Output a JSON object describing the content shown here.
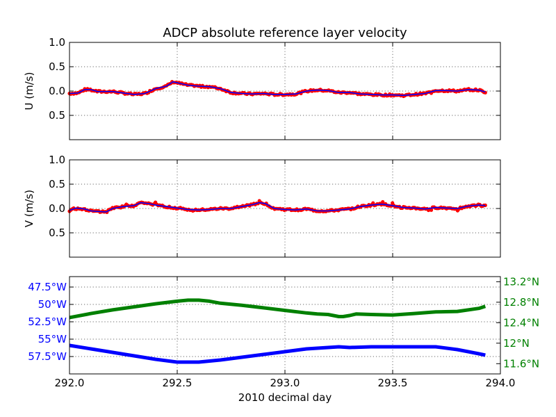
{
  "chart_data": [
    {
      "type": "line",
      "title": "ADCP absolute reference layer velocity",
      "ylabel": "U (m/s)",
      "xlim": [
        292.0,
        294.0
      ],
      "ylim": [
        -1.0,
        1.0
      ],
      "yticks": [
        "1.0",
        "0.5",
        "0.0"
      ],
      "ytick_values": [
        1.0,
        0.5,
        0.0
      ],
      "yticks_neg": [
        "0.5"
      ],
      "grid": true,
      "colors": {
        "raw": "#ff0000",
        "smoothed": "#0000ff"
      },
      "x": [
        292.0,
        292.04,
        292.07,
        292.1,
        292.13,
        292.17,
        292.2,
        292.25,
        292.3,
        292.35,
        292.4,
        292.45,
        292.48,
        292.52,
        292.55,
        292.6,
        292.65,
        292.7,
        292.75,
        292.8,
        292.85,
        292.9,
        292.95,
        293.0,
        293.05,
        293.1,
        293.15,
        293.2,
        293.25,
        293.3,
        293.35,
        293.4,
        293.45,
        293.5,
        293.55,
        293.6,
        293.65,
        293.7,
        293.75,
        293.8,
        293.85,
        293.9,
        293.93
      ],
      "y": [
        -0.05,
        -0.04,
        0.03,
        0.03,
        -0.01,
        -0.01,
        -0.01,
        -0.04,
        -0.07,
        -0.05,
        0.05,
        0.1,
        0.19,
        0.15,
        0.12,
        0.1,
        0.09,
        0.05,
        -0.03,
        -0.05,
        -0.06,
        -0.05,
        -0.07,
        -0.07,
        -0.06,
        0.0,
        0.02,
        0.01,
        -0.03,
        -0.03,
        -0.06,
        -0.07,
        -0.08,
        -0.08,
        -0.09,
        -0.07,
        -0.05,
        0.01,
        0.01,
        0.0,
        0.03,
        0.02,
        -0.02
      ]
    },
    {
      "type": "line",
      "ylabel": "V (m/s)",
      "xlim": [
        292.0,
        294.0
      ],
      "ylim": [
        -1.0,
        1.0
      ],
      "yticks": [
        "1.0",
        "0.5",
        "0.0"
      ],
      "ytick_values": [
        1.0,
        0.5,
        0.0
      ],
      "yticks_neg": [
        "0.5"
      ],
      "grid": true,
      "colors": {
        "raw": "#ff0000",
        "smoothed": "#0000ff"
      },
      "x": [
        292.0,
        292.03,
        292.07,
        292.1,
        292.13,
        292.17,
        292.2,
        292.25,
        292.3,
        292.33,
        292.37,
        292.4,
        292.45,
        292.5,
        292.55,
        292.6,
        292.65,
        292.7,
        292.75,
        292.8,
        292.85,
        292.88,
        292.91,
        292.95,
        293.0,
        293.05,
        293.1,
        293.15,
        293.2,
        293.25,
        293.3,
        293.35,
        293.4,
        293.45,
        293.5,
        293.55,
        293.6,
        293.65,
        293.7,
        293.75,
        293.8,
        293.85,
        293.9,
        293.93
      ],
      "y": [
        -0.04,
        0.01,
        -0.01,
        -0.05,
        -0.06,
        -0.07,
        0.0,
        0.04,
        0.06,
        0.12,
        0.1,
        0.07,
        0.04,
        0.01,
        -0.02,
        -0.03,
        -0.02,
        0.0,
        0.0,
        0.04,
        0.08,
        0.12,
        0.1,
        0.0,
        -0.02,
        -0.03,
        -0.01,
        -0.05,
        -0.05,
        -0.03,
        -0.01,
        0.04,
        0.07,
        0.09,
        0.06,
        0.02,
        0.01,
        -0.01,
        0.02,
        0.01,
        0.0,
        0.05,
        0.07,
        0.06
      ]
    },
    {
      "type": "line",
      "xlabel": "2010 decimal day",
      "xlim": [
        292.0,
        294.0
      ],
      "xticks": [
        "292.0",
        "292.5",
        "293.0",
        "293.5",
        "294.0"
      ],
      "xtick_values": [
        292.0,
        292.5,
        293.0,
        293.5,
        294.0
      ],
      "grid": true,
      "series": [
        {
          "axis": "left",
          "color": "#0000ff",
          "ylim": [
            -60.0,
            -46.0
          ],
          "ytick_values": [
            -47.5,
            -50.0,
            -52.5,
            -55.0,
            -57.5
          ],
          "yticks": [
            "47.5°W",
            "50°W",
            "52.5°W",
            "55°W",
            "57.5°W"
          ],
          "x": [
            292.0,
            292.1,
            292.2,
            292.3,
            292.4,
            292.5,
            292.6,
            292.7,
            292.8,
            292.9,
            293.0,
            293.1,
            293.2,
            293.25,
            293.3,
            293.4,
            293.5,
            293.6,
            293.7,
            293.8,
            293.9,
            293.93
          ],
          "y": [
            -55.9,
            -56.4,
            -56.9,
            -57.4,
            -57.9,
            -58.3,
            -58.3,
            -58.0,
            -57.6,
            -57.2,
            -56.8,
            -56.4,
            -56.2,
            -56.1,
            -56.2,
            -56.1,
            -56.1,
            -56.1,
            -56.1,
            -56.5,
            -57.1,
            -57.3
          ]
        },
        {
          "axis": "right",
          "color": "#008000",
          "ylim": [
            11.4,
            13.3
          ],
          "ytick_values": [
            13.2,
            12.8,
            12.4,
            12.0,
            11.6
          ],
          "yticks": [
            "13.2°N",
            "12.8°N",
            "12.4°N",
            "12°N",
            "11.6°N"
          ],
          "x": [
            292.0,
            292.1,
            292.2,
            292.3,
            292.4,
            292.5,
            292.55,
            292.6,
            292.65,
            292.7,
            292.8,
            292.9,
            293.0,
            293.1,
            293.15,
            293.2,
            293.25,
            293.27,
            293.3,
            293.33,
            293.4,
            293.5,
            293.6,
            293.7,
            293.8,
            293.9,
            293.93
          ],
          "y": [
            12.5,
            12.58,
            12.65,
            12.71,
            12.77,
            12.82,
            12.84,
            12.84,
            12.82,
            12.78,
            12.74,
            12.69,
            12.64,
            12.59,
            12.57,
            12.56,
            12.52,
            12.52,
            12.54,
            12.57,
            12.56,
            12.55,
            12.58,
            12.61,
            12.62,
            12.68,
            12.72
          ]
        }
      ]
    }
  ]
}
